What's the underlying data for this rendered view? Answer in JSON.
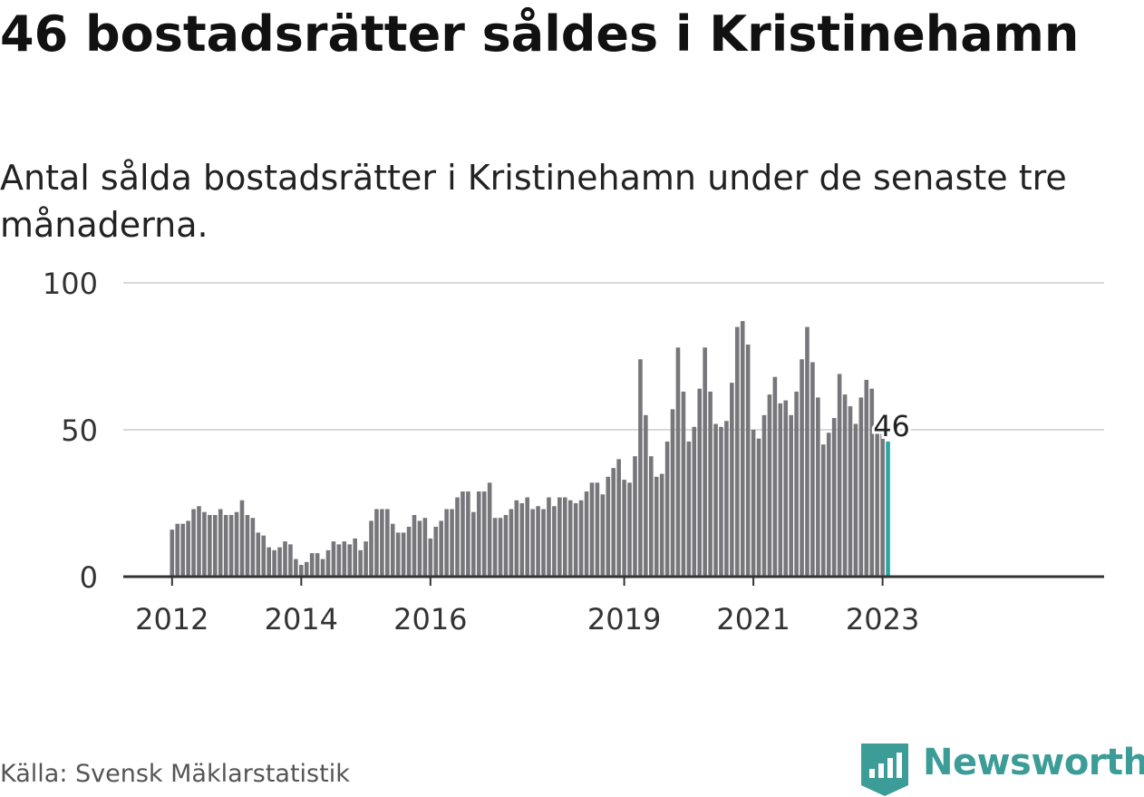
{
  "title": "46 bostadsrätter såldes i Kristinehamn",
  "subtitle": "Antal sålda bostadsrätter i Kristinehamn under de senaste tre månaderna.",
  "source": "Källa: Svensk Mäklarstatistik",
  "brand": {
    "name": "Newsworthy",
    "logo_icon": "newsworthy-logo-icon",
    "color": "#3c9c98"
  },
  "chart_data": {
    "type": "bar",
    "title": "46 bostadsrätter såldes i Kristinehamn",
    "subtitle": "Antal sålda bostadsrätter i Kristinehamn under de senaste tre månaderna.",
    "xlabel": "",
    "ylabel": "",
    "ylim": [
      0,
      100
    ],
    "y_ticks": [
      "0",
      "50",
      "100"
    ],
    "x_ticks": [
      "2012",
      "2014",
      "2016",
      "2019",
      "2021",
      "2023"
    ],
    "grid": true,
    "bar_color": "#77767b",
    "highlight_color": "#29a7a3",
    "highlight_label": "46",
    "start_month": "2012-01",
    "values": [
      16,
      18,
      18,
      19,
      23,
      24,
      22,
      21,
      21,
      23,
      21,
      21,
      22,
      26,
      21,
      20,
      15,
      14,
      10,
      9,
      10,
      12,
      11,
      6,
      4,
      5,
      8,
      8,
      6,
      9,
      12,
      11,
      12,
      11,
      13,
      9,
      12,
      19,
      23,
      23,
      23,
      18,
      15,
      15,
      17,
      21,
      19,
      20,
      13,
      17,
      19,
      23,
      23,
      27,
      29,
      29,
      22,
      29,
      29,
      32,
      20,
      20,
      21,
      23,
      26,
      25,
      27,
      23,
      24,
      23,
      27,
      24,
      27,
      27,
      26,
      25,
      26,
      29,
      32,
      32,
      28,
      34,
      37,
      40,
      33,
      32,
      41,
      74,
      55,
      41,
      34,
      35,
      46,
      57,
      78,
      63,
      46,
      51,
      64,
      78,
      63,
      52,
      51,
      53,
      66,
      85,
      87,
      79,
      50,
      47,
      55,
      62,
      68,
      59,
      60,
      55,
      63,
      74,
      85,
      73,
      61,
      45,
      49,
      54,
      69,
      62,
      58,
      52,
      61,
      67,
      64,
      52,
      51,
      46
    ]
  }
}
